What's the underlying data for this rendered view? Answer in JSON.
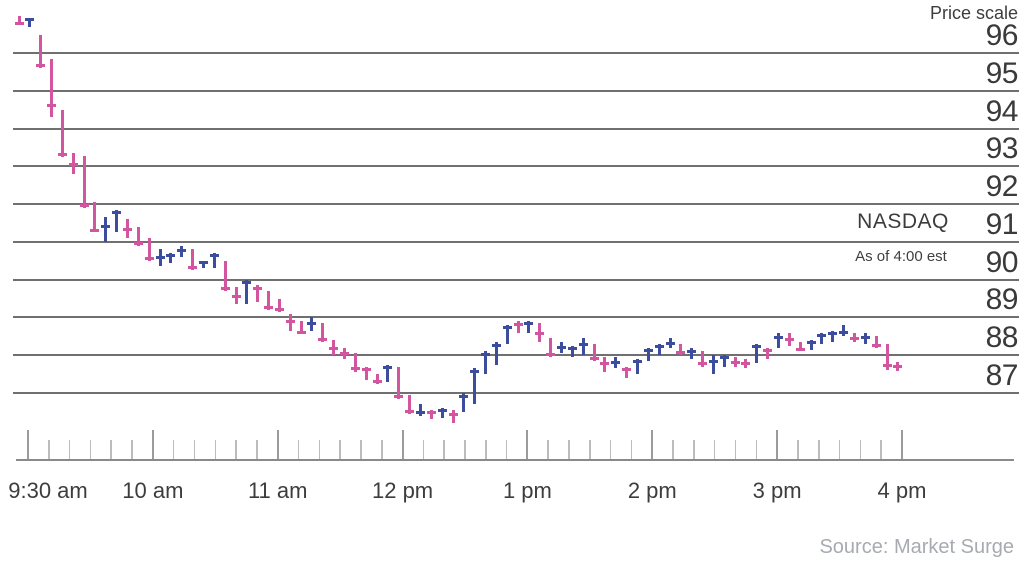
{
  "chart_data": {
    "type": "bar",
    "subtype": "intraday-hlc-price-bars",
    "title": "NASDAQ",
    "subtitle_annotation": "As of 4:00 est",
    "source": "Source: Market Surge",
    "legend": "none",
    "grid": "horizontal-only",
    "y_axis": {
      "label": "Price scale",
      "label_position": "top-right",
      "tick_labels": [
        96,
        95,
        94,
        93,
        92,
        91,
        90,
        89,
        88,
        87
      ],
      "implied_range": [
        86.2,
        97.2
      ],
      "side": "right"
    },
    "x_axis": {
      "tick_labels": [
        "9:30 am",
        "10 am",
        "11 am",
        "12 pm",
        "1 pm",
        "2 pm",
        "3 pm",
        "4 pm"
      ],
      "minor_ticks_between_major": 5,
      "session": "9:30 am to 4:00 pm"
    },
    "colors": {
      "up_bar": "#3D4D9D",
      "down_bar": "#D4559F",
      "gridline": "#707070",
      "axis_text": "#3d3d3d",
      "source_text": "#a7abb1"
    },
    "bars_format": [
      "high",
      "low",
      "close",
      "direction (u=up/blue, d=down/pink)"
    ],
    "bars": [
      [
        96.98,
        96.73,
        96.76,
        "d"
      ],
      [
        96.93,
        96.7,
        96.9,
        "u"
      ],
      [
        96.48,
        95.6,
        95.66,
        "d"
      ],
      [
        95.85,
        94.3,
        94.62,
        "d"
      ],
      [
        94.5,
        93.25,
        93.32,
        "d"
      ],
      [
        93.35,
        92.8,
        93.05,
        "d"
      ],
      [
        93.27,
        91.9,
        91.97,
        "d"
      ],
      [
        92.05,
        91.25,
        91.31,
        "d"
      ],
      [
        91.65,
        91.0,
        91.4,
        "u"
      ],
      [
        91.85,
        91.25,
        91.78,
        "u"
      ],
      [
        91.6,
        91.1,
        91.33,
        "d"
      ],
      [
        91.4,
        90.9,
        90.96,
        "d"
      ],
      [
        91.1,
        90.5,
        90.56,
        "d"
      ],
      [
        90.8,
        90.35,
        90.6,
        "u"
      ],
      [
        90.7,
        90.45,
        90.64,
        "u"
      ],
      [
        90.9,
        90.6,
        90.76,
        "u"
      ],
      [
        90.8,
        90.25,
        90.31,
        "d"
      ],
      [
        90.5,
        90.3,
        90.45,
        "u"
      ],
      [
        90.7,
        90.3,
        90.63,
        "u"
      ],
      [
        90.5,
        89.7,
        89.77,
        "d"
      ],
      [
        89.8,
        89.35,
        89.56,
        "d"
      ],
      [
        90.0,
        89.35,
        89.92,
        "u"
      ],
      [
        89.85,
        89.4,
        89.77,
        "d"
      ],
      [
        89.7,
        89.2,
        89.27,
        "d"
      ],
      [
        89.5,
        89.15,
        89.21,
        "d"
      ],
      [
        89.1,
        88.65,
        88.9,
        "d"
      ],
      [
        88.9,
        88.55,
        88.61,
        "d"
      ],
      [
        89.0,
        88.65,
        88.85,
        "u"
      ],
      [
        88.85,
        88.35,
        88.41,
        "d"
      ],
      [
        88.4,
        88.0,
        88.18,
        "d"
      ],
      [
        88.2,
        87.9,
        88.04,
        "d"
      ],
      [
        88.05,
        87.55,
        87.64,
        "d"
      ],
      [
        87.7,
        87.35,
        87.61,
        "d"
      ],
      [
        87.5,
        87.25,
        87.31,
        "d"
      ],
      [
        87.75,
        87.3,
        87.67,
        "u"
      ],
      [
        87.7,
        86.85,
        86.92,
        "d"
      ],
      [
        86.95,
        86.45,
        86.52,
        "d"
      ],
      [
        86.7,
        86.4,
        86.48,
        "u"
      ],
      [
        86.55,
        86.3,
        86.49,
        "d"
      ],
      [
        86.6,
        86.35,
        86.54,
        "u"
      ],
      [
        86.55,
        86.2,
        86.44,
        "d"
      ],
      [
        87.0,
        86.5,
        86.92,
        "u"
      ],
      [
        87.65,
        86.7,
        87.57,
        "u"
      ],
      [
        88.1,
        87.5,
        88.02,
        "u"
      ],
      [
        88.35,
        87.75,
        88.27,
        "u"
      ],
      [
        88.8,
        88.3,
        88.73,
        "u"
      ],
      [
        88.9,
        88.6,
        88.81,
        "d"
      ],
      [
        88.9,
        88.6,
        88.83,
        "u"
      ],
      [
        88.85,
        88.35,
        88.57,
        "d"
      ],
      [
        88.45,
        87.95,
        88.01,
        "d"
      ],
      [
        88.35,
        88.05,
        88.2,
        "u"
      ],
      [
        88.25,
        87.95,
        88.19,
        "u"
      ],
      [
        88.45,
        88.0,
        88.29,
        "u"
      ],
      [
        88.3,
        87.85,
        87.91,
        "d"
      ],
      [
        87.95,
        87.55,
        87.77,
        "d"
      ],
      [
        87.95,
        87.65,
        87.81,
        "u"
      ],
      [
        87.7,
        87.4,
        87.63,
        "d"
      ],
      [
        87.9,
        87.5,
        87.83,
        "u"
      ],
      [
        88.2,
        87.85,
        88.12,
        "u"
      ],
      [
        88.3,
        88.0,
        88.23,
        "u"
      ],
      [
        88.45,
        88.2,
        88.32,
        "u"
      ],
      [
        88.3,
        88.0,
        88.07,
        "d"
      ],
      [
        88.2,
        87.9,
        88.09,
        "u"
      ],
      [
        88.1,
        87.7,
        87.77,
        "d"
      ],
      [
        88.0,
        87.5,
        87.84,
        "u"
      ],
      [
        88.0,
        87.7,
        87.94,
        "u"
      ],
      [
        87.95,
        87.7,
        87.81,
        "d"
      ],
      [
        87.9,
        87.65,
        87.77,
        "d"
      ],
      [
        88.3,
        87.8,
        88.23,
        "u"
      ],
      [
        88.2,
        87.9,
        88.13,
        "d"
      ],
      [
        88.6,
        88.2,
        88.47,
        "u"
      ],
      [
        88.6,
        88.25,
        88.41,
        "d"
      ],
      [
        88.35,
        88.1,
        88.16,
        "d"
      ],
      [
        88.4,
        88.15,
        88.33,
        "u"
      ],
      [
        88.6,
        88.3,
        88.53,
        "u"
      ],
      [
        88.65,
        88.35,
        88.57,
        "u"
      ],
      [
        88.8,
        88.5,
        88.61,
        "u"
      ],
      [
        88.6,
        88.35,
        88.44,
        "d"
      ],
      [
        88.6,
        88.3,
        88.46,
        "u"
      ],
      [
        88.5,
        88.2,
        88.27,
        "d"
      ],
      [
        88.3,
        87.6,
        87.74,
        "d"
      ],
      [
        87.82,
        87.58,
        87.7,
        "d"
      ]
    ]
  }
}
